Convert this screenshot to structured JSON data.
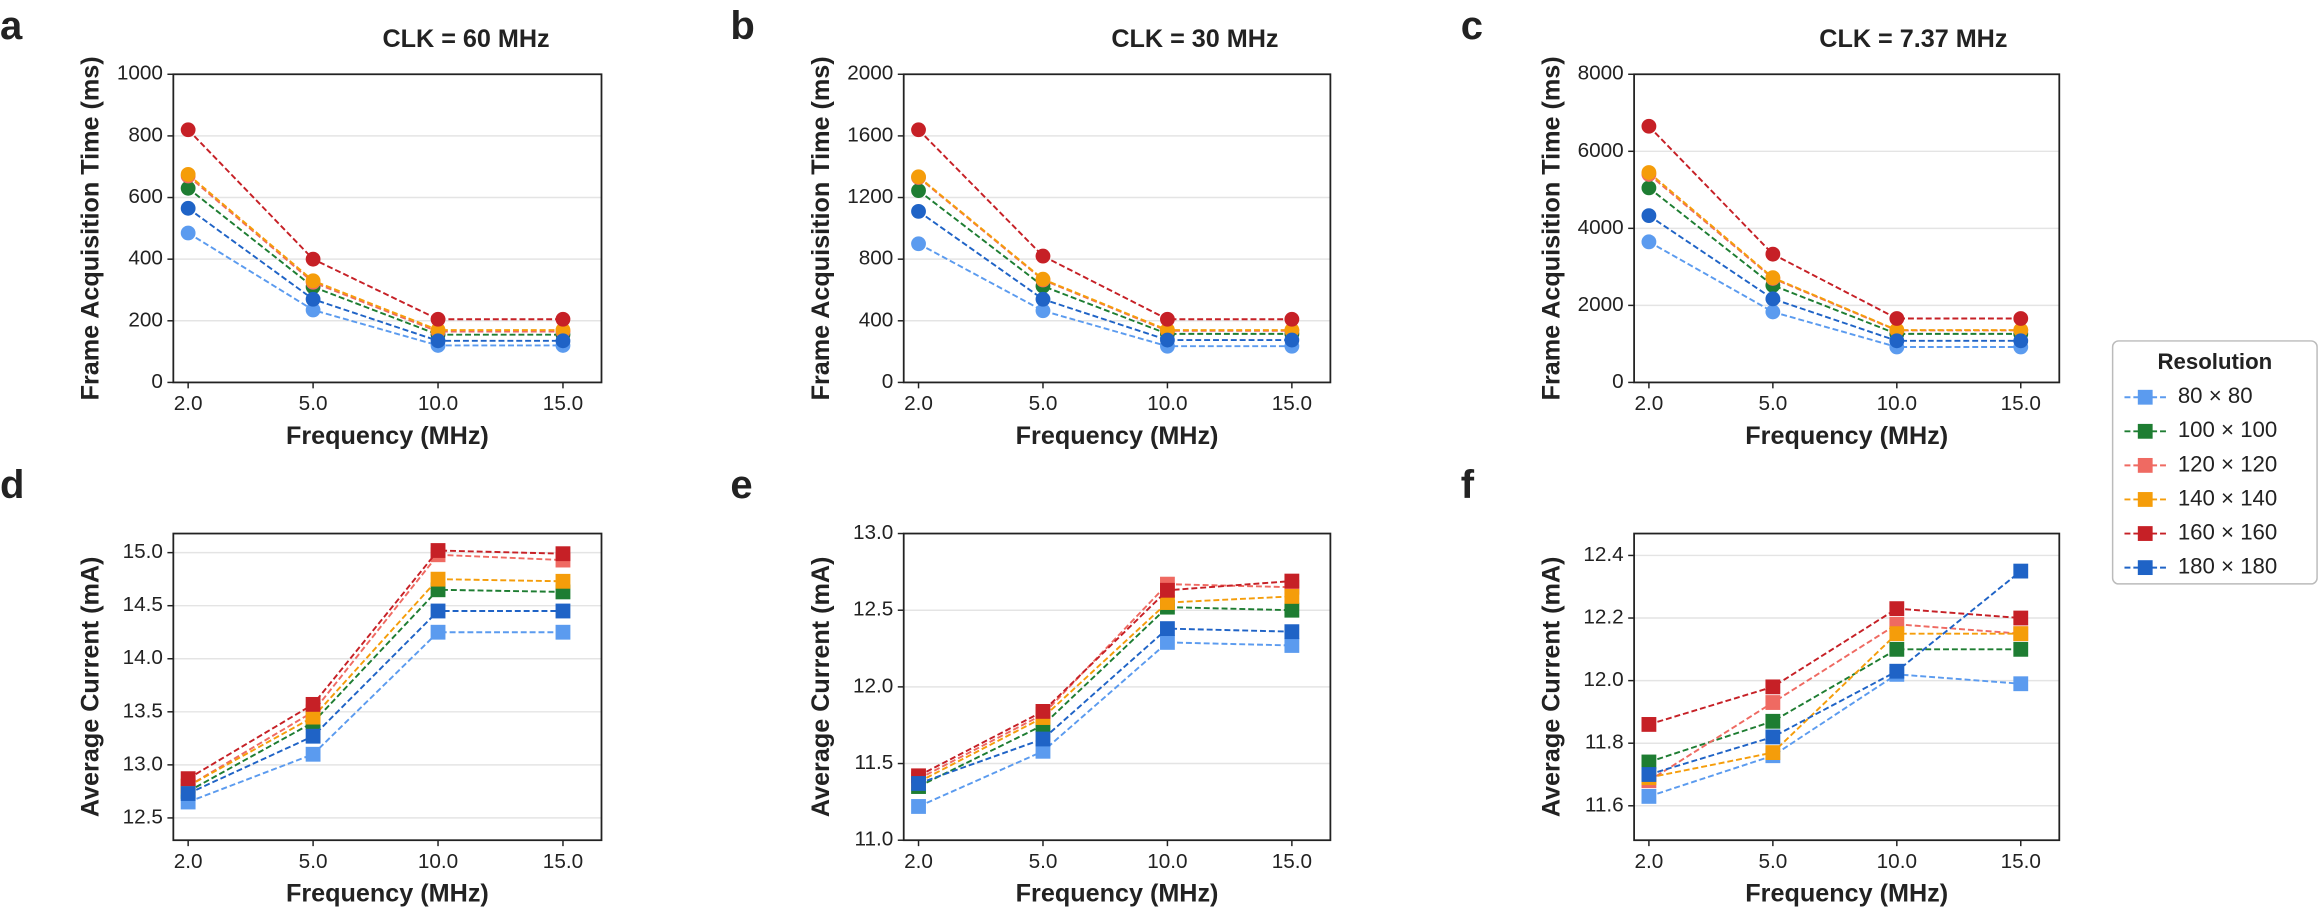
{
  "chart_data": [
    {
      "type": "line",
      "panel": "a",
      "title": "CLK = 60 MHz",
      "marker": "circle",
      "x_label": "Frequency (MHz)",
      "y_label": "Frame Acquisition Time (ms)",
      "categories": [
        "2.0",
        "5.0",
        "10.0",
        "15.0"
      ],
      "ylim": [
        0,
        1000
      ],
      "yticks": [
        0,
        200,
        400,
        600,
        800,
        1000
      ],
      "grid": true,
      "series": [
        {
          "color": "#5b9bef",
          "values": [
            485,
            235,
            120,
            120
          ]
        },
        {
          "color": "#1e7d32",
          "values": [
            630,
            310,
            155,
            155
          ]
        },
        {
          "color": "#ef6a62",
          "values": [
            670,
            325,
            165,
            165
          ]
        },
        {
          "color": "#f59d0a",
          "values": [
            675,
            330,
            170,
            170
          ]
        },
        {
          "color": "#c62026",
          "values": [
            820,
            400,
            205,
            205
          ]
        },
        {
          "color": "#1f63c6",
          "values": [
            565,
            270,
            135,
            135
          ]
        }
      ]
    },
    {
      "type": "line",
      "panel": "b",
      "title": "CLK = 30 MHz",
      "marker": "circle",
      "x_label": "Frequency (MHz)",
      "y_label": "Frame Acquisition Time (ms)",
      "categories": [
        "2.0",
        "5.0",
        "10.0",
        "15.0"
      ],
      "ylim": [
        0,
        2000
      ],
      "yticks": [
        0,
        400,
        800,
        1200,
        1600,
        2000
      ],
      "grid": true,
      "series": [
        {
          "color": "#5b9bef",
          "values": [
            900,
            465,
            235,
            235
          ]
        },
        {
          "color": "#1e7d32",
          "values": [
            1245,
            625,
            315,
            315
          ]
        },
        {
          "color": "#ef6a62",
          "values": [
            1330,
            665,
            335,
            335
          ]
        },
        {
          "color": "#f59d0a",
          "values": [
            1335,
            670,
            340,
            340
          ]
        },
        {
          "color": "#c62026",
          "values": [
            1640,
            820,
            410,
            410
          ]
        },
        {
          "color": "#1f63c6",
          "values": [
            1110,
            540,
            275,
            275
          ]
        }
      ]
    },
    {
      "type": "line",
      "panel": "c",
      "title": "CLK = 7.37 MHz",
      "marker": "circle",
      "x_label": "Frequency (MHz)",
      "y_label": "Frame Acquisition Time (ms)",
      "categories": [
        "2.0",
        "5.0",
        "10.0",
        "15.0"
      ],
      "ylim": [
        0,
        8000
      ],
      "yticks": [
        0,
        2000,
        4000,
        6000,
        8000
      ],
      "grid": true,
      "series": [
        {
          "color": "#5b9bef",
          "values": [
            3650,
            1830,
            920,
            920
          ]
        },
        {
          "color": "#1e7d32",
          "values": [
            5050,
            2520,
            1260,
            1260
          ]
        },
        {
          "color": "#ef6a62",
          "values": [
            5400,
            2700,
            1350,
            1350
          ]
        },
        {
          "color": "#f59d0a",
          "values": [
            5450,
            2720,
            1360,
            1360
          ]
        },
        {
          "color": "#c62026",
          "values": [
            6650,
            3330,
            1660,
            1660
          ]
        },
        {
          "color": "#1f63c6",
          "values": [
            4330,
            2170,
            1080,
            1080
          ]
        }
      ]
    },
    {
      "type": "line",
      "panel": "d",
      "marker": "square",
      "x_label": "Frequency (MHz)",
      "y_label": "Average Current (mA)",
      "categories": [
        "2.0",
        "5.0",
        "10.0",
        "15.0"
      ],
      "ylim": [
        12.29,
        15.18
      ],
      "yticks": [
        12.5,
        {
          "value": 13,
          "label": "13.0"
        },
        13.5,
        {
          "value": 14,
          "label": "14.0"
        },
        14.5,
        {
          "value": 15,
          "label": "15.0"
        }
      ],
      "grid": true,
      "series": [
        {
          "color": "#5b9bef",
          "values": [
            12.65,
            13.1,
            14.25,
            14.25
          ]
        },
        {
          "color": "#1e7d32",
          "values": [
            12.75,
            13.4,
            14.65,
            14.63
          ]
        },
        {
          "color": "#ef6a62",
          "values": [
            12.8,
            13.5,
            14.98,
            14.93
          ]
        },
        {
          "color": "#f59d0a",
          "values": [
            12.8,
            13.45,
            14.75,
            14.73
          ]
        },
        {
          "color": "#c62026",
          "values": [
            12.87,
            13.57,
            15.02,
            14.99
          ]
        },
        {
          "color": "#1f63c6",
          "values": [
            12.73,
            13.27,
            14.45,
            14.45
          ]
        }
      ]
    },
    {
      "type": "line",
      "panel": "e",
      "marker": "square",
      "x_label": "Frequency (MHz)",
      "y_label": "Average Current (mA)",
      "categories": [
        "2.0",
        "5.0",
        "10.0",
        "15.0"
      ],
      "ylim": [
        11,
        13
      ],
      "yticks": [
        {
          "value": 11,
          "label": "11.0"
        },
        11.5,
        {
          "value": 12,
          "label": "12.0"
        },
        12.5,
        {
          "value": 13,
          "label": "13.0"
        }
      ],
      "grid": true,
      "series": [
        {
          "color": "#5b9bef",
          "values": [
            11.22,
            11.58,
            12.29,
            12.27
          ]
        },
        {
          "color": "#1e7d32",
          "values": [
            11.35,
            11.75,
            12.52,
            12.5
          ]
        },
        {
          "color": "#ef6a62",
          "values": [
            11.4,
            11.82,
            12.67,
            12.65
          ]
        },
        {
          "color": "#f59d0a",
          "values": [
            11.38,
            11.8,
            12.55,
            12.59
          ]
        },
        {
          "color": "#c62026",
          "values": [
            11.42,
            11.84,
            12.63,
            12.69
          ]
        },
        {
          "color": "#1f63c6",
          "values": [
            11.37,
            11.66,
            12.38,
            12.36
          ]
        }
      ]
    },
    {
      "type": "line",
      "panel": "f",
      "marker": "square",
      "x_label": "Frequency (MHz)",
      "y_label": "Average Current (mA)",
      "categories": [
        "2.0",
        "5.0",
        "10.0",
        "15.0"
      ],
      "ylim": [
        11.49,
        12.47
      ],
      "yticks": [
        11.6,
        11.8,
        {
          "value": 12,
          "label": "12.0"
        },
        12.2,
        12.4
      ],
      "grid": true,
      "series": [
        {
          "color": "#5b9bef",
          "values": [
            11.63,
            11.76,
            12.02,
            11.99
          ]
        },
        {
          "color": "#1e7d32",
          "values": [
            11.74,
            11.87,
            12.1,
            12.1
          ]
        },
        {
          "color": "#ef6a62",
          "values": [
            11.68,
            11.93,
            12.18,
            12.15
          ]
        },
        {
          "color": "#f59d0a",
          "values": [
            11.69,
            11.77,
            12.15,
            12.15
          ]
        },
        {
          "color": "#c62026",
          "values": [
            11.86,
            11.98,
            12.23,
            12.2
          ]
        },
        {
          "color": "#1f63c6",
          "values": [
            11.7,
            11.82,
            12.03,
            12.35
          ]
        }
      ]
    }
  ],
  "legend": {
    "title": "Resolution",
    "entries": [
      "80 × 80",
      "100 × 100",
      "120 × 120",
      "140 × 140",
      "160 × 160",
      "180 × 180"
    ]
  }
}
